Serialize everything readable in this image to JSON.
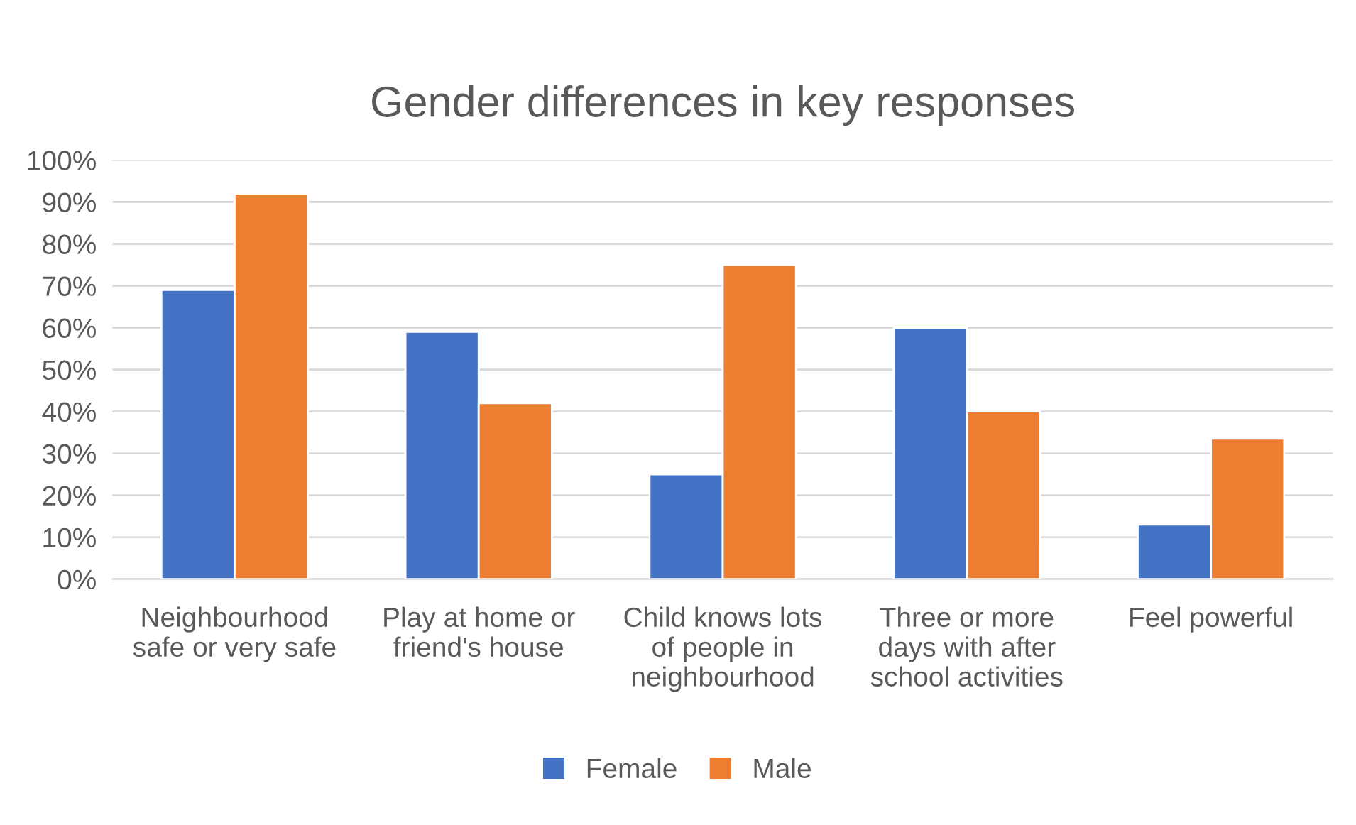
{
  "chart_data": {
    "type": "bar",
    "title": "Gender differences in key responses",
    "categories": [
      "Neighbourhood\nsafe or very safe",
      "Play at home or\nfriend's house",
      "Child knows lots\nof people in\nneighbourhood",
      "Three or more\ndays with after\nschool activities",
      "Feel powerful"
    ],
    "series": [
      {
        "name": "Female",
        "color": "#4472c4",
        "values": [
          69,
          59,
          25,
          60,
          13
        ]
      },
      {
        "name": "Male",
        "color": "#ed7d31",
        "values": [
          92,
          42,
          75,
          40,
          33.5
        ]
      }
    ],
    "ylim": [
      0,
      100
    ],
    "yticks": [
      {
        "value": 0,
        "label": "0%"
      },
      {
        "value": 10,
        "label": "10%"
      },
      {
        "value": 20,
        "label": "20%"
      },
      {
        "value": 30,
        "label": "30%"
      },
      {
        "value": 40,
        "label": "40%"
      },
      {
        "value": 50,
        "label": "50%"
      },
      {
        "value": 60,
        "label": "60%"
      },
      {
        "value": 70,
        "label": "70%"
      },
      {
        "value": 80,
        "label": "80%"
      },
      {
        "value": 90,
        "label": "90%"
      },
      {
        "value": 100,
        "label": "100%"
      }
    ],
    "grid": "y",
    "legend": "bottom"
  }
}
